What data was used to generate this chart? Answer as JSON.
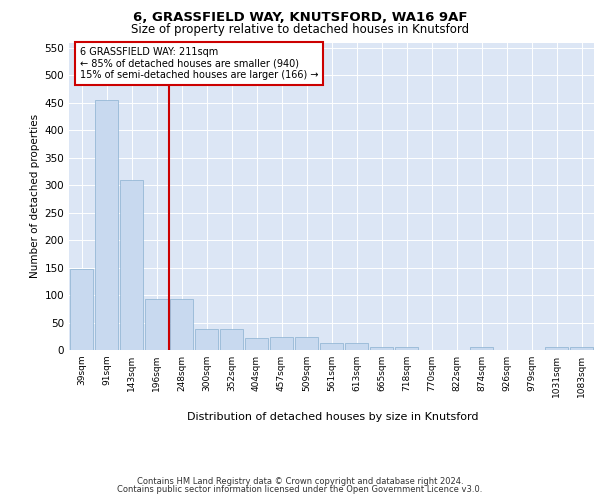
{
  "title": "6, GRASSFIELD WAY, KNUTSFORD, WA16 9AF",
  "subtitle": "Size of property relative to detached houses in Knutsford",
  "xlabel": "Distribution of detached houses by size in Knutsford",
  "ylabel": "Number of detached properties",
  "bin_labels": [
    "39sqm",
    "91sqm",
    "143sqm",
    "196sqm",
    "248sqm",
    "300sqm",
    "352sqm",
    "404sqm",
    "457sqm",
    "509sqm",
    "561sqm",
    "613sqm",
    "665sqm",
    "718sqm",
    "770sqm",
    "822sqm",
    "874sqm",
    "926sqm",
    "979sqm",
    "1031sqm",
    "1083sqm"
  ],
  "bar_values": [
    148,
    455,
    310,
    92,
    92,
    38,
    38,
    22,
    23,
    23,
    13,
    13,
    5,
    5,
    0,
    0,
    5,
    0,
    0,
    5,
    5
  ],
  "bar_color": "#c8d9ef",
  "bar_edge_color": "#8ab0d0",
  "vline_x_index": 3.5,
  "vline_color": "#cc0000",
  "annotation_text": "6 GRASSFIELD WAY: 211sqm\n← 85% of detached houses are smaller (940)\n15% of semi-detached houses are larger (166) →",
  "annotation_box_color": "white",
  "annotation_box_edge": "#cc0000",
  "ylim": [
    0,
    560
  ],
  "yticks": [
    0,
    50,
    100,
    150,
    200,
    250,
    300,
    350,
    400,
    450,
    500,
    550
  ],
  "background_color": "#dce6f5",
  "footer_line1": "Contains HM Land Registry data © Crown copyright and database right 2024.",
  "footer_line2": "Contains public sector information licensed under the Open Government Licence v3.0."
}
